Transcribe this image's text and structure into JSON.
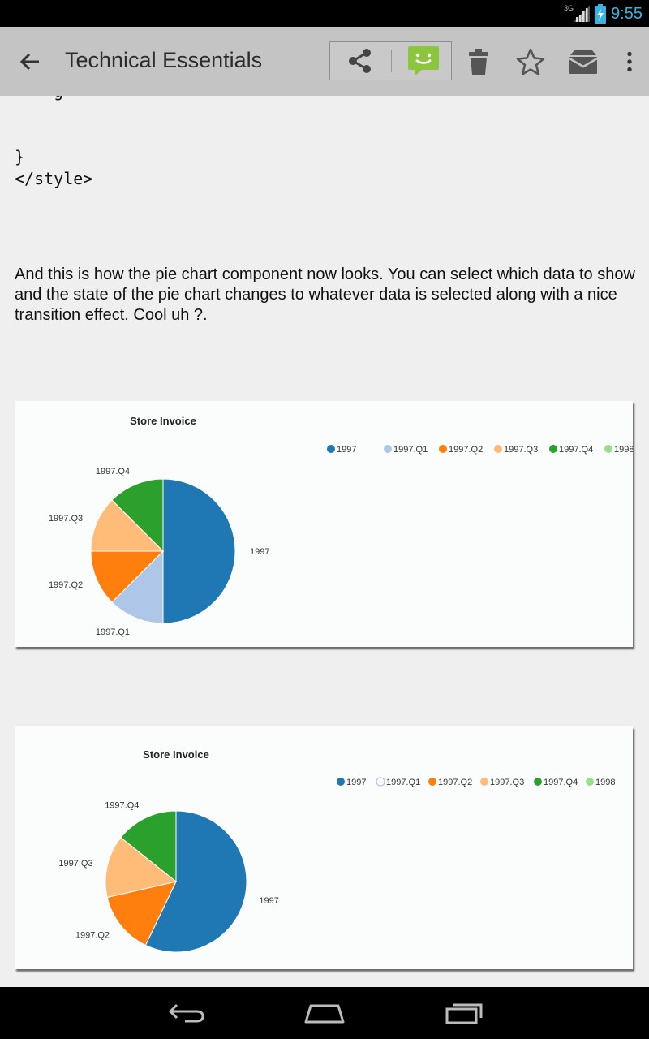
{
  "status_bar": {
    "time": "9:55",
    "network": "3G"
  },
  "action_bar": {
    "title": "Technical Essentials",
    "icons": [
      "back-arrow-icon",
      "share-icon",
      "message-icon",
      "trash-icon",
      "star-icon",
      "archive-icon",
      "overflow-menu-icon"
    ],
    "colors": {
      "background": "#c4c4c4",
      "icon": "#555555",
      "message_icon": "#8cc63f"
    }
  },
  "content": {
    "code_lines": [
      "}",
      "</style>"
    ],
    "paragraph": "And this is how the pie chart component now looks. You can select which data to show and the state of the pie chart changes to whatever data is selected along with a nice transition effect. Cool uh ?."
  },
  "chart_data": [
    {
      "type": "pie",
      "title": "Store Invoice",
      "legend": [
        "1997",
        "1997.Q1",
        "1997.Q2",
        "1997.Q3",
        "1997.Q4",
        "1998"
      ],
      "legend_hollow": [],
      "legend_position": "top-right",
      "colors": [
        "#1f77b4",
        "#aec7e8",
        "#ff7f0e",
        "#ffbb78",
        "#2ca02c",
        "#98df8a"
      ],
      "slices": [
        {
          "label": "1997",
          "value": 50,
          "color": "#1f77b4"
        },
        {
          "label": "1997.Q1",
          "value": 12.5,
          "color": "#aec7e8"
        },
        {
          "label": "1997.Q2",
          "value": 12.5,
          "color": "#ff7f0e"
        },
        {
          "label": "1997.Q3",
          "value": 12.5,
          "color": "#ffbb78"
        },
        {
          "label": "1997.Q4",
          "value": 12.5,
          "color": "#2ca02c"
        }
      ]
    },
    {
      "type": "pie",
      "title": "Store Invoice",
      "legend": [
        "1997",
        "1997.Q1",
        "1997.Q2",
        "1997.Q3",
        "1997.Q4",
        "1998"
      ],
      "legend_hollow": [
        "1997.Q1"
      ],
      "legend_position": "top-right",
      "colors": [
        "#1f77b4",
        "#aec7e8",
        "#ff7f0e",
        "#ffbb78",
        "#2ca02c",
        "#98df8a"
      ],
      "slices": [
        {
          "label": "1997",
          "value": 57.1,
          "color": "#1f77b4"
        },
        {
          "label": "1997.Q2",
          "value": 14.3,
          "color": "#ff7f0e"
        },
        {
          "label": "1997.Q3",
          "value": 14.3,
          "color": "#ffbb78"
        },
        {
          "label": "1997.Q4",
          "value": 14.3,
          "color": "#2ca02c"
        }
      ]
    }
  ],
  "nav_bar": {
    "icons": [
      "back-nav-icon",
      "home-nav-icon",
      "recents-nav-icon"
    ]
  }
}
